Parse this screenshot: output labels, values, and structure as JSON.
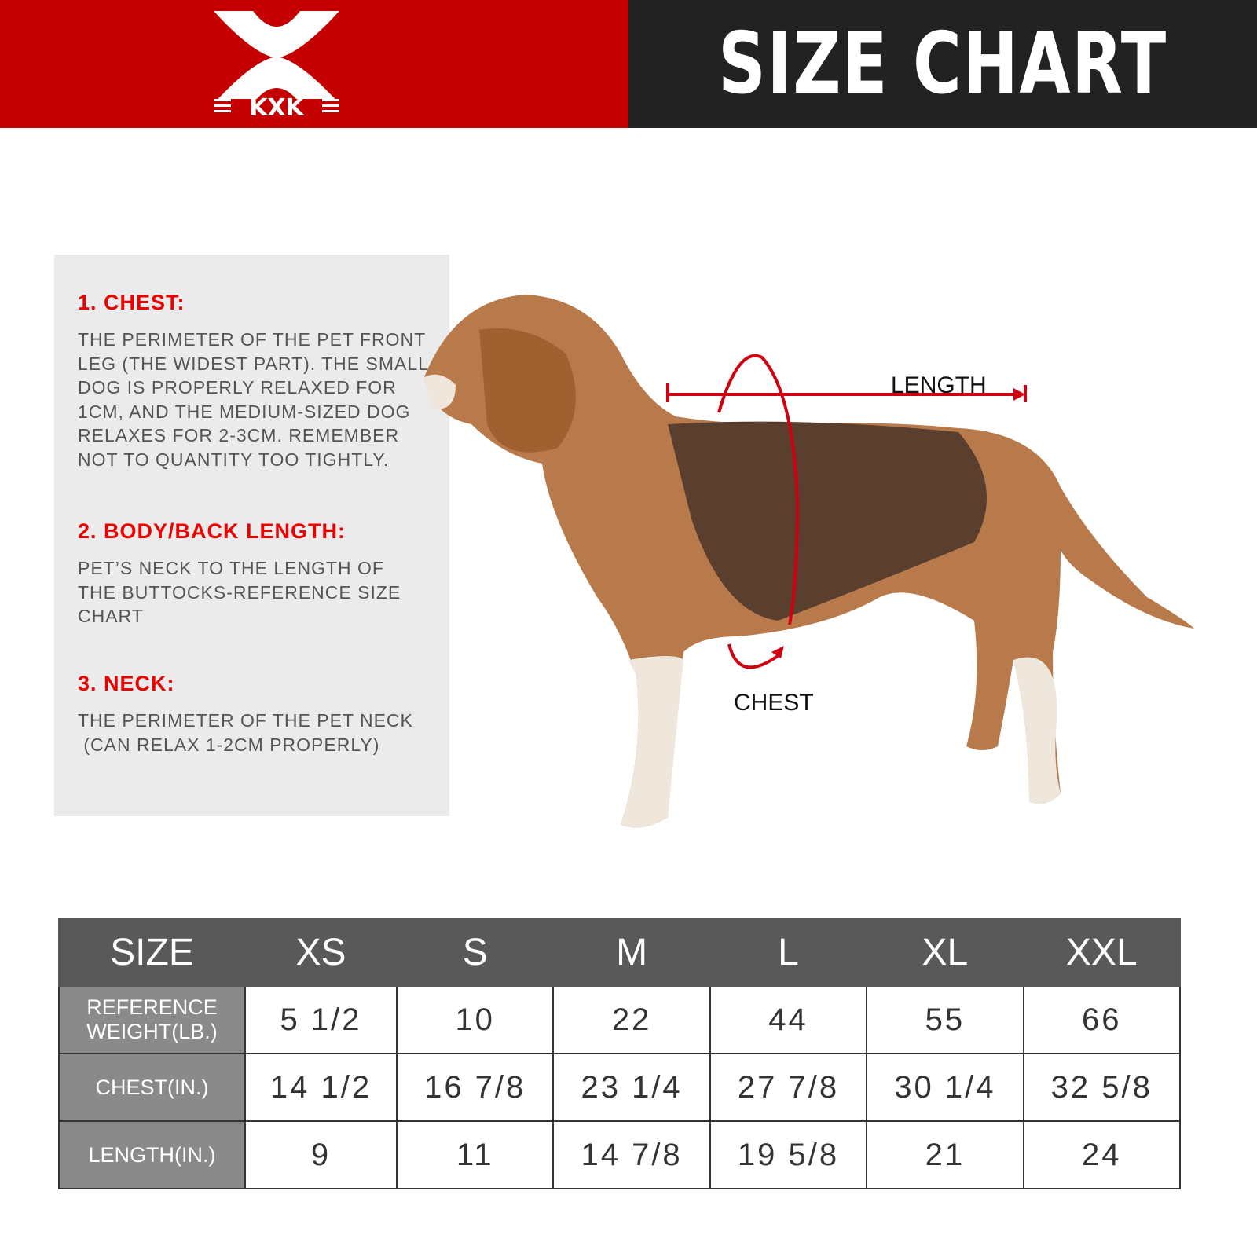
{
  "brand": {
    "logo_text": "KXK",
    "colors": {
      "red": "#c40000",
      "dark": "#222222"
    }
  },
  "header": {
    "title": "SIZE CHART"
  },
  "guide": [
    {
      "heading": "1. CHEST:",
      "text": "THE PERIMETER OF THE PET FRONT\nLEG (THE WIDEST PART). THE SMALL\nDOG IS PROPERLY RELAXED FOR\n1CM, AND THE MEDIUM-SIZED DOG\nRELAXES FOR 2-3CM. REMEMBER\nNOT TO QUANTITY TOO TIGHTLY."
    },
    {
      "heading": "2. BODY/BACK LENGTH:",
      "text": "PET’S NECK TO THE LENGTH OF\nTHE BUTTOCKS-REFERENCE SIZE\nCHART"
    },
    {
      "heading": "3. NECK:",
      "text": "THE PERIMETER OF THE PET NECK\n (CAN RELAX 1-2CM PROPERLY)"
    }
  ],
  "diagram": {
    "length_label": "LENGTH",
    "chest_label": "CHEST"
  },
  "table": {
    "headers": [
      "SIZE",
      "XS",
      "S",
      "M",
      "L",
      "XL",
      "XXL"
    ],
    "rows": [
      {
        "label": "REFERENCE\nWEIGHT(LB.)",
        "values": [
          "5 1/2",
          "10",
          "22",
          "44",
          "55",
          "66"
        ]
      },
      {
        "label": "CHEST(IN.)",
        "values": [
          "14 1/2",
          "16 7/8",
          "23 1/4",
          "27 7/8",
          "30 1/4",
          "32 5/8"
        ]
      },
      {
        "label": "LENGTH(IN.)",
        "values": [
          "9",
          "11",
          "14 7/8",
          "19 5/8",
          "21",
          "24"
        ]
      }
    ]
  }
}
